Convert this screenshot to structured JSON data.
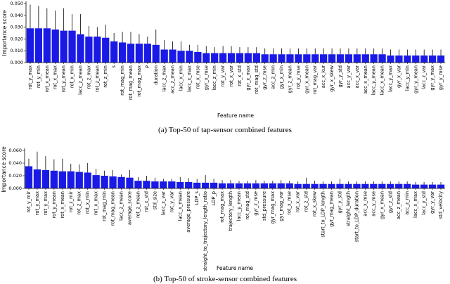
{
  "chart_data": [
    {
      "type": "bar",
      "caption": "(a) Top-50 of tap-sensor combined features",
      "xlabel": "Feature name",
      "ylabel": "Importance score",
      "color": "#1a1ae6",
      "error_color": "#000000",
      "categories": [
        "rot_y_max",
        "rot_y_min",
        "rot_x_mean",
        "rot_x_max",
        "rot_y_mean",
        "rot_x_min",
        "lacc_z_mean",
        "rot_z_max",
        "rot_z_mean",
        "rot_z_min",
        "s",
        "rot_mag_min",
        "rot_mag_mean",
        "rot_mag_max",
        "P",
        "duration",
        "lacc_z_max",
        "acc_z_mean",
        "lacc_x_min",
        "lacc_x_max",
        "rot_x_mse",
        "gyr_x_mse",
        "lacc_z_min",
        "rot_y_var",
        "rot_x_var",
        "rot_x_std",
        "gyr_x_max",
        "rot_mag_std",
        "gyr_z_mse",
        "acc_z_min",
        "gyr_x_min",
        "gyr_z_mean",
        "rot_y_mse",
        "gyr_x_mean",
        "rot_mag_var",
        "acc_x_kur",
        "gyr_x_skew",
        "gyr_y_std",
        "acc_y_var",
        "acc_x_var",
        "acc_x_mean",
        "lacc_y_mean",
        "lacc_x_mean",
        "lacc_y_max",
        "gyr_x_var",
        "lacc_y_min",
        "gyr_y_mean",
        "lacc_z_var",
        "gyr_y_max",
        "gyr_y_mse"
      ],
      "values": [
        0.029,
        0.029,
        0.029,
        0.028,
        0.027,
        0.027,
        0.024,
        0.022,
        0.022,
        0.021,
        0.018,
        0.017,
        0.016,
        0.016,
        0.016,
        0.015,
        0.011,
        0.011,
        0.01,
        0.01,
        0.009,
        0.008,
        0.008,
        0.008,
        0.008,
        0.008,
        0.008,
        0.008,
        0.007,
        0.007,
        0.007,
        0.007,
        0.007,
        0.007,
        0.007,
        0.007,
        0.007,
        0.007,
        0.007,
        0.007,
        0.007,
        0.007,
        0.007,
        0.006,
        0.006,
        0.006,
        0.006,
        0.006,
        0.006,
        0.006
      ],
      "errors": [
        0.02,
        0.019,
        0.017,
        0.016,
        0.019,
        0.014,
        0.017,
        0.009,
        0.008,
        0.011,
        0.007,
        0.009,
        0.01,
        0.008,
        0.006,
        0.013,
        0.008,
        0.007,
        0.008,
        0.005,
        0.006,
        0.006,
        0.005,
        0.006,
        0.006,
        0.005,
        0.005,
        0.005,
        0.005,
        0.005,
        0.005,
        0.005,
        0.005,
        0.005,
        0.005,
        0.005,
        0.005,
        0.005,
        0.005,
        0.005,
        0.005,
        0.005,
        0.005,
        0.005,
        0.005,
        0.005,
        0.005,
        0.005,
        0.005,
        0.005
      ],
      "ylim": [
        0,
        0.05
      ],
      "yticks": [
        {
          "value": 0,
          "label": "0.000"
        },
        {
          "value": 0.01,
          "label": "0.010"
        },
        {
          "value": 0.02,
          "label": "0.020"
        },
        {
          "value": 0.03,
          "label": "0.030"
        },
        {
          "value": 0.04,
          "label": "0.040"
        },
        {
          "value": 0.05,
          "label": "0.050"
        }
      ]
    },
    {
      "type": "bar",
      "caption": "(b) Top-50 of stroke-sensor combined features",
      "xlabel": "Feature name",
      "ylabel": "Importance score",
      "color": "#1a1ae6",
      "error_color": "#000000",
      "categories": [
        "rot_y_mir",
        "rot_y_max",
        "rot_y_max",
        "rot_y_mean",
        "rot_x_mean",
        "rot_z_mir",
        "rot_z_max",
        "rot_x_min",
        "rot_x_max",
        "rot_mag_min",
        "rot_mag_mean",
        "lacc_z_mean",
        "average_score",
        "rot_z_mean",
        "rot_x_std",
        "std_size",
        "lacc_x_var",
        "rot_y_var",
        "lacc_x_mean",
        "average_pressure",
        "LDP_s",
        "straight_to_trajectory_length_ratio",
        "LDP_p",
        "rot_mag_max",
        "trajectory_length",
        "lacc_y_mean",
        "rot_mag_std",
        "gyr_z_mse",
        "std_pressure",
        "gyr_mag_max",
        "gyr_mag_var",
        "rot_x_mse",
        "rot_x_var",
        "rot_z_std",
        "rot_x_skew",
        "start_to_LDP_length",
        "gyr_mag_mean",
        "gyr_y_std",
        "straight_length",
        "start_to_LDP_duration",
        "acc_x_mse",
        "acc_y_mse",
        "gyr_x_mean",
        "gyr_z_std",
        "acc_z_mean",
        "acc_z_min",
        "lacc_x_max",
        "lacc_y_std",
        "gyr_y_var",
        "std_velocity"
      ],
      "values": [
        0.035,
        0.03,
        0.029,
        0.028,
        0.027,
        0.027,
        0.026,
        0.025,
        0.021,
        0.02,
        0.019,
        0.018,
        0.017,
        0.012,
        0.012,
        0.011,
        0.011,
        0.011,
        0.01,
        0.01,
        0.009,
        0.009,
        0.009,
        0.008,
        0.008,
        0.008,
        0.008,
        0.008,
        0.008,
        0.008,
        0.008,
        0.008,
        0.007,
        0.007,
        0.007,
        0.007,
        0.007,
        0.007,
        0.007,
        0.007,
        0.007,
        0.007,
        0.007,
        0.007,
        0.007,
        0.007,
        0.006,
        0.006,
        0.006,
        0.006
      ],
      "errors": [
        0.012,
        0.028,
        0.022,
        0.018,
        0.02,
        0.012,
        0.012,
        0.015,
        0.01,
        0.008,
        0.01,
        0.004,
        0.012,
        0.006,
        0.008,
        0.006,
        0.004,
        0.004,
        0.008,
        0.006,
        0.006,
        0.012,
        0.006,
        0.005,
        0.005,
        0.004,
        0.004,
        0.005,
        0.004,
        0.004,
        0.005,
        0.004,
        0.004,
        0.01,
        0.005,
        0.004,
        0.004,
        0.008,
        0.004,
        0.004,
        0.004,
        0.004,
        0.004,
        0.004,
        0.004,
        0.004,
        0.004,
        0.004,
        0.004,
        0.004
      ],
      "ylim": [
        0,
        0.06
      ],
      "yticks": [
        {
          "value": 0,
          "label": "0.000"
        },
        {
          "value": 0.02,
          "label": "0.020"
        },
        {
          "value": 0.04,
          "label": "0.040"
        },
        {
          "value": 0.06,
          "label": "0.060"
        }
      ]
    }
  ]
}
